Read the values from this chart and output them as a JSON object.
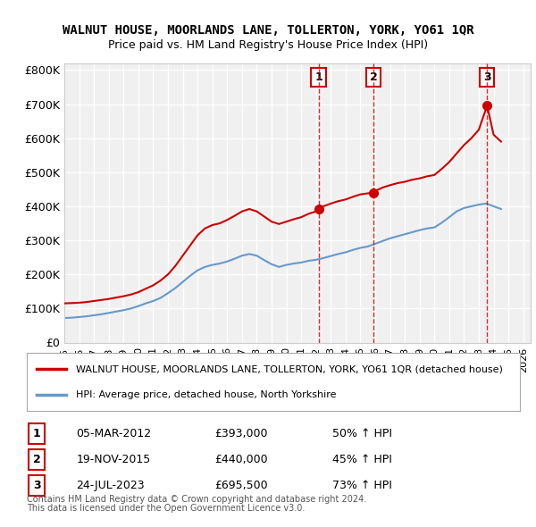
{
  "title": "WALNUT HOUSE, MOORLANDS LANE, TOLLERTON, YORK, YO61 1QR",
  "subtitle": "Price paid vs. HM Land Registry's House Price Index (HPI)",
  "ylabel_ticks": [
    "£0",
    "£100K",
    "£200K",
    "£300K",
    "£400K",
    "£500K",
    "£600K",
    "£700K",
    "£800K"
  ],
  "ytick_values": [
    0,
    100000,
    200000,
    300000,
    400000,
    500000,
    600000,
    700000,
    800000
  ],
  "ylim": [
    0,
    820000
  ],
  "xlim_start": 1995.0,
  "xlim_end": 2026.5,
  "background_color": "#ffffff",
  "plot_bg_color": "#f0f0f0",
  "grid_color": "#ffffff",
  "red_line_color": "#cc0000",
  "blue_line_color": "#6699cc",
  "sale_marker_color": "#cc0000",
  "sale_dashed_color": "#cc0000",
  "legend_label_red": "WALNUT HOUSE, MOORLANDS LANE, TOLLERTON, YORK, YO61 1QR (detached house)",
  "legend_label_blue": "HPI: Average price, detached house, North Yorkshire",
  "sales": [
    {
      "num": 1,
      "date_label": "05-MAR-2012",
      "price_label": "£393,000",
      "pct_label": "50% ↑ HPI",
      "year": 2012.17,
      "price": 393000
    },
    {
      "num": 2,
      "date_label": "19-NOV-2015",
      "price_label": "£440,000",
      "pct_label": "45% ↑ HPI",
      "year": 2015.88,
      "price": 440000
    },
    {
      "num": 3,
      "date_label": "24-JUL-2023",
      "price_label": "£695,500",
      "pct_label": "73% ↑ HPI",
      "year": 2023.56,
      "price": 695500
    }
  ],
  "footnote1": "Contains HM Land Registry data © Crown copyright and database right 2024.",
  "footnote2": "This data is licensed under the Open Government Licence v3.0.",
  "red_line_data": {
    "x": [
      1995.0,
      1995.5,
      1996.0,
      1996.5,
      1997.0,
      1997.5,
      1998.0,
      1998.5,
      1999.0,
      1999.5,
      2000.0,
      2000.5,
      2001.0,
      2001.5,
      2002.0,
      2002.5,
      2003.0,
      2003.5,
      2004.0,
      2004.5,
      2005.0,
      2005.5,
      2006.0,
      2006.5,
      2007.0,
      2007.5,
      2008.0,
      2008.5,
      2009.0,
      2009.5,
      2010.0,
      2010.5,
      2011.0,
      2011.5,
      2012.0,
      2012.17,
      2012.5,
      2013.0,
      2013.5,
      2014.0,
      2014.5,
      2015.0,
      2015.5,
      2015.88,
      2016.0,
      2016.5,
      2017.0,
      2017.5,
      2018.0,
      2018.5,
      2019.0,
      2019.5,
      2020.0,
      2020.5,
      2021.0,
      2021.5,
      2022.0,
      2022.5,
      2023.0,
      2023.56,
      2024.0,
      2024.5
    ],
    "y": [
      115000,
      116000,
      117000,
      119000,
      122000,
      125000,
      128000,
      132000,
      136000,
      141000,
      148000,
      158000,
      168000,
      182000,
      200000,
      225000,
      255000,
      285000,
      315000,
      335000,
      345000,
      350000,
      360000,
      372000,
      385000,
      392000,
      385000,
      370000,
      355000,
      348000,
      355000,
      362000,
      368000,
      378000,
      385000,
      393000,
      400000,
      408000,
      415000,
      420000,
      428000,
      435000,
      438000,
      440000,
      445000,
      455000,
      462000,
      468000,
      472000,
      478000,
      482000,
      488000,
      492000,
      510000,
      530000,
      555000,
      580000,
      600000,
      625000,
      695500,
      610000,
      590000
    ]
  },
  "blue_line_data": {
    "x": [
      1995.0,
      1995.5,
      1996.0,
      1996.5,
      1997.0,
      1997.5,
      1998.0,
      1998.5,
      1999.0,
      1999.5,
      2000.0,
      2000.5,
      2001.0,
      2001.5,
      2002.0,
      2002.5,
      2003.0,
      2003.5,
      2004.0,
      2004.5,
      2005.0,
      2005.5,
      2006.0,
      2006.5,
      2007.0,
      2007.5,
      2008.0,
      2008.5,
      2009.0,
      2009.5,
      2010.0,
      2010.5,
      2011.0,
      2011.5,
      2012.0,
      2012.5,
      2013.0,
      2013.5,
      2014.0,
      2014.5,
      2015.0,
      2015.5,
      2016.0,
      2016.5,
      2017.0,
      2017.5,
      2018.0,
      2018.5,
      2019.0,
      2019.5,
      2020.0,
      2020.5,
      2021.0,
      2021.5,
      2022.0,
      2022.5,
      2023.0,
      2023.5,
      2024.0,
      2024.5
    ],
    "y": [
      72000,
      73000,
      75000,
      77000,
      80000,
      83000,
      87000,
      91000,
      95000,
      100000,
      107000,
      115000,
      122000,
      131000,
      145000,
      160000,
      178000,
      196000,
      212000,
      222000,
      228000,
      232000,
      238000,
      246000,
      255000,
      260000,
      255000,
      242000,
      230000,
      222000,
      228000,
      232000,
      235000,
      240000,
      243000,
      248000,
      254000,
      260000,
      265000,
      272000,
      278000,
      282000,
      290000,
      298000,
      306000,
      312000,
      318000,
      324000,
      330000,
      335000,
      338000,
      352000,
      368000,
      385000,
      395000,
      400000,
      405000,
      408000,
      400000,
      392000
    ]
  }
}
